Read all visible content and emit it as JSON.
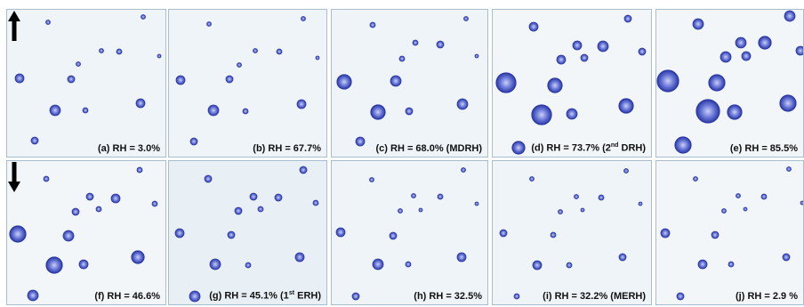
{
  "figure": {
    "rows": [
      {
        "direction": "up",
        "icon": "arrow-up-icon",
        "panels": [
          {
            "label": "(a) RH = 3.0%",
            "tint": "#eef4f8"
          },
          {
            "label": "(b) RH = 67.7%",
            "tint": "#eef4f8"
          },
          {
            "label": "(c) RH = 68.0% (MDRH)",
            "tint": "#eef4f8"
          },
          {
            "label_pre": "(d) RH = 73.7% (2",
            "label_sup": "nd",
            "label_post": " DRH)",
            "tint": "#f2f6f9"
          },
          {
            "label": "(e) RH = 85.5%",
            "tint": "#f2f6f9"
          }
        ]
      },
      {
        "direction": "down",
        "icon": "arrow-down-icon",
        "panels": [
          {
            "label": "(f) RH = 46.6%",
            "tint": "#f2f6f9"
          },
          {
            "label_pre": "(g) RH = 45.1% (1",
            "label_sup": "st",
            "label_post": " ERH)",
            "tint": "#e9f0f5"
          },
          {
            "label": "(h) RH = 32.5%",
            "tint": "#eef4f8"
          },
          {
            "label": "(i) RH = 32.2% (MERH)",
            "tint": "#eef4f8"
          },
          {
            "label": "(j) RH = 2.9 %",
            "tint": "#f2f6f9"
          }
        ]
      }
    ],
    "colors": {
      "particle_dark": "#2d3aa6",
      "particle_mid": "#6a78d8",
      "particle_light": "#c9d0f3",
      "border": "#a9bdcc",
      "arrow": "#000000"
    }
  }
}
